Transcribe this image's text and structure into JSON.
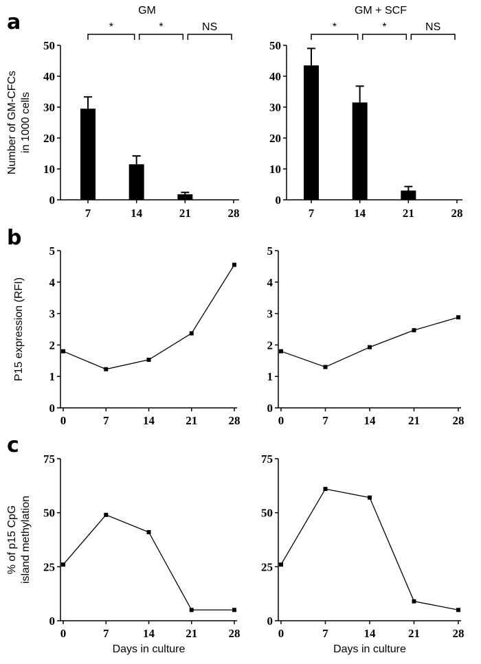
{
  "chart_data": [
    {
      "type": "bar",
      "panel": "a",
      "title": "GM",
      "ylabel": "Number of GM-CFCs in 1000 cells",
      "xlabel": "",
      "categories": [
        "7",
        "14",
        "21",
        "28"
      ],
      "values": [
        29.5,
        11.5,
        1.8,
        0
      ],
      "errors": [
        3.8,
        2.7,
        0.6,
        0
      ],
      "ylim": [
        0,
        50
      ],
      "yticks": [
        0,
        10,
        20,
        30,
        40,
        50
      ],
      "significance": [
        "*",
        "*",
        "NS"
      ]
    },
    {
      "type": "bar",
      "panel": "",
      "title": "GM + SCF",
      "ylabel": "",
      "xlabel": "",
      "categories": [
        "7",
        "14",
        "21",
        "28"
      ],
      "values": [
        43.5,
        31.5,
        3,
        0
      ],
      "errors": [
        5.5,
        5.3,
        1.3,
        0
      ],
      "ylim": [
        0,
        50
      ],
      "yticks": [
        0,
        10,
        20,
        30,
        40,
        50
      ],
      "significance": [
        "*",
        "*",
        "NS"
      ]
    },
    {
      "type": "line",
      "panel": "b",
      "title": "",
      "ylabel": "P15 expression (RFI)",
      "xlabel": "",
      "x": [
        0,
        7,
        14,
        21,
        28
      ],
      "y": [
        1.8,
        1.23,
        1.53,
        2.37,
        4.55
      ],
      "ylim": [
        0,
        5
      ],
      "yticks": [
        0,
        1,
        2,
        3,
        4,
        5
      ],
      "xticks": [
        0,
        7,
        14,
        21,
        28
      ]
    },
    {
      "type": "line",
      "panel": "",
      "title": "",
      "ylabel": "",
      "xlabel": "",
      "x": [
        0,
        7,
        14,
        21,
        28
      ],
      "y": [
        1.8,
        1.3,
        1.93,
        2.47,
        2.88
      ],
      "ylim": [
        0,
        5
      ],
      "yticks": [
        0,
        1,
        2,
        3,
        4,
        5
      ],
      "xticks": [
        0,
        7,
        14,
        21,
        28
      ]
    },
    {
      "type": "line",
      "panel": "c",
      "title": "",
      "ylabel": "% of p15 CpG island methylation",
      "xlabel": "Days in culture",
      "x": [
        0,
        7,
        14,
        21,
        28
      ],
      "y": [
        26,
        49,
        41,
        5,
        5
      ],
      "ylim": [
        0,
        75
      ],
      "yticks": [
        0,
        25,
        50,
        75
      ],
      "xticks": [
        0,
        7,
        14,
        21,
        28
      ]
    },
    {
      "type": "line",
      "panel": "",
      "title": "",
      "ylabel": "",
      "xlabel": "Days in culture",
      "x": [
        0,
        7,
        14,
        21,
        28
      ],
      "y": [
        26,
        61,
        57,
        9,
        5
      ],
      "ylim": [
        0,
        75
      ],
      "yticks": [
        0,
        25,
        50,
        75
      ],
      "xticks": [
        0,
        7,
        14,
        21,
        28
      ]
    }
  ]
}
